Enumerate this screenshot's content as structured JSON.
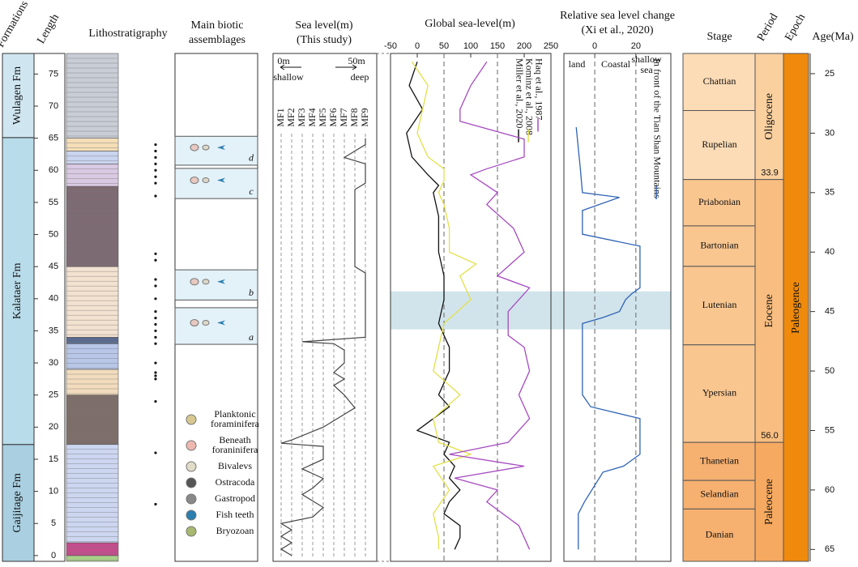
{
  "headers": {
    "formations": "Formations",
    "length": "Length",
    "lithostratigraphy": "Lithostratigraphy",
    "biotic_1": "Main biotic",
    "biotic_2": "assemblages",
    "sea_level_1": "Sea level(m)",
    "sea_level_2": "(This study)",
    "global": "Global sea-level(m)",
    "relative_1": "Relative sea level change",
    "relative_2": "(Xi et al., 2020)",
    "stage": "Stage",
    "period": "Period",
    "epoch": "Epoch",
    "age": "Age(Ma)"
  },
  "length_axis": {
    "lim": [
      -0.9,
      78.2
    ],
    "ticks": [
      0,
      5,
      10,
      15,
      20,
      25,
      30,
      35,
      40,
      45,
      50,
      55,
      60,
      65,
      70,
      75
    ]
  },
  "formations": [
    {
      "name": "Gaijitage Fm",
      "base": -0.9,
      "color": "#a9cfe0"
    },
    {
      "name": "Kalataer Fm",
      "base": 17.3,
      "color": "#b9dcea"
    },
    {
      "name": "Wulagen Fm",
      "base": 65.1,
      "color": "#cfe6f1"
    }
  ],
  "lithology": [
    {
      "bottom": -0.9,
      "top": 0,
      "color": "#a9cf8a"
    },
    {
      "bottom": 0,
      "top": 2,
      "color": "#c54c8c"
    },
    {
      "bottom": 2,
      "top": 17.3,
      "color": "#cdd6f0"
    },
    {
      "bottom": 17.3,
      "top": 25,
      "color": "#7d6e69"
    },
    {
      "bottom": 25,
      "top": 29,
      "color": "#f2dcbd"
    },
    {
      "bottom": 29,
      "top": 33,
      "color": "#b8c6e8"
    },
    {
      "bottom": 33,
      "top": 34,
      "color": "#5a6b8e"
    },
    {
      "bottom": 34,
      "top": 45,
      "color": "#f3e2d0"
    },
    {
      "bottom": 45,
      "top": 57.5,
      "color": "#7d6a72"
    },
    {
      "bottom": 57.5,
      "top": 61,
      "color": "#d9c9e2"
    },
    {
      "bottom": 61,
      "top": 63,
      "color": "#c9d4ef"
    },
    {
      "bottom": 63,
      "top": 65,
      "color": "#f5deb7"
    },
    {
      "bottom": 65,
      "top": 78.2,
      "color": "#c9cdd6"
    }
  ],
  "samples": [
    8,
    16,
    24,
    27.5,
    28,
    28.5,
    30,
    33,
    34,
    35,
    36,
    37,
    38,
    40,
    42,
    43,
    46,
    47,
    56,
    58,
    59,
    60,
    61,
    62,
    63,
    64
  ],
  "biotic": {
    "zones": [
      {
        "label": "a",
        "bottom": 32.9,
        "top": 38.6
      },
      {
        "label": "b",
        "bottom": 39.8,
        "top": 44.5
      },
      {
        "label": "c",
        "bottom": 55.6,
        "top": 60.3
      },
      {
        "label": "d",
        "bottom": 60.8,
        "top": 65.3
      }
    ],
    "legend": [
      [
        "Planktonic",
        "foraminifera"
      ],
      [
        "Beneath",
        "foraninifera"
      ],
      [
        "Bivalevs"
      ],
      [
        "Ostracoda"
      ],
      [
        "Gastropod"
      ],
      [
        "Fish teeth"
      ],
      [
        "Bryozoan"
      ]
    ]
  },
  "sea_level_study": {
    "left_label": "0m",
    "right_label": "50m",
    "shallow": "shallow",
    "deep": "deep",
    "facies": [
      "MF1",
      "MF2",
      "MF3",
      "MF4",
      "MF5",
      "MF6",
      "MF7",
      "MF8",
      "MF9"
    ],
    "lengths": [
      0,
      1,
      2,
      3,
      4,
      5,
      6,
      7.5,
      8.5,
      9.5,
      10.5,
      12,
      13.5,
      15,
      17,
      17.5,
      18,
      20,
      23,
      25,
      26.5,
      27.5,
      28.5,
      30,
      32,
      33,
      33.3,
      34,
      44,
      45,
      57,
      58,
      61,
      62,
      64,
      65
    ],
    "facies_index": [
      2,
      1,
      2,
      1,
      2,
      1,
      4,
      5,
      4,
      3,
      4,
      5,
      3,
      5,
      5,
      1,
      2,
      5,
      8,
      7,
      6,
      7,
      6,
      7,
      7,
      6,
      3,
      9,
      9,
      8,
      8,
      9,
      9,
      7,
      9,
      9
    ]
  },
  "age_axis": {
    "lim": [
      23.3,
      66.0
    ],
    "ticks": [
      25,
      30,
      35,
      40,
      45,
      50,
      55,
      60,
      65
    ]
  },
  "highlight": [
    43.3,
    46.5
  ],
  "global_sea_level": {
    "xlim": [
      -50,
      250
    ],
    "xticks": [
      -50,
      0,
      50,
      100,
      150,
      200,
      250
    ],
    "reference_lines": [
      50,
      150
    ],
    "series": [
      {
        "name": "Miller et al., 2020",
        "color": "#111111",
        "ages": [
          24,
          26,
          28,
          30,
          32,
          33.5,
          34.4,
          35,
          37,
          40,
          42,
          44,
          46,
          48,
          50,
          52,
          53,
          54,
          55,
          56,
          57,
          58,
          59,
          60,
          61,
          62,
          63,
          64,
          65
        ],
        "values": [
          0,
          -15,
          10,
          -20,
          -10,
          20,
          40,
          30,
          40,
          40,
          50,
          50,
          40,
          60,
          60,
          40,
          60,
          30,
          0,
          60,
          50,
          70,
          60,
          80,
          60,
          50,
          80,
          80,
          70
        ]
      },
      {
        "name": "Kominz et al., 2008",
        "color": "#e3e04a",
        "ages": [
          24,
          26,
          28,
          30,
          32,
          33,
          34,
          35,
          36,
          38,
          40,
          41,
          42,
          44,
          46,
          48,
          50,
          52,
          54,
          56,
          57,
          58,
          60,
          62,
          64,
          65
        ],
        "values": [
          -10,
          20,
          10,
          0,
          20,
          50,
          50,
          40,
          50,
          60,
          60,
          110,
          80,
          100,
          50,
          40,
          30,
          80,
          30,
          40,
          100,
          30,
          60,
          30,
          40,
          40
        ]
      },
      {
        "name": "Haq et al., 1987",
        "color": "#a64bc0",
        "ages": [
          24,
          26,
          28,
          29,
          30.5,
          32,
          33,
          33.5,
          35,
          36,
          38,
          40,
          42,
          43,
          45,
          47,
          48,
          50,
          52,
          54,
          56,
          57,
          58,
          59,
          60,
          61,
          63,
          65
        ],
        "values": [
          130,
          100,
          80,
          80,
          200,
          200,
          130,
          100,
          150,
          130,
          180,
          200,
          150,
          210,
          170,
          170,
          200,
          210,
          190,
          210,
          170,
          60,
          200,
          70,
          150,
          130,
          190,
          210
        ]
      }
    ]
  },
  "relative_sea_level": {
    "xlim": [
      -15,
      37
    ],
    "xticks": [
      0,
      20
    ],
    "land": "land",
    "coastal": "Coastal",
    "shallow_1": "shallow",
    "shallow_2": "sea",
    "series": [
      {
        "name": "In front of the Tian Shan Mountains",
        "color": "#2f63b5",
        "ages": [
          29.5,
          33,
          35,
          35.4,
          36.5,
          38.5,
          39.5,
          43,
          43.5,
          44,
          45,
          45.5,
          46,
          52,
          53,
          54,
          57,
          58,
          58.5,
          61,
          62,
          65
        ],
        "values": [
          -9,
          -7,
          -6,
          12,
          -6,
          -6,
          22,
          22,
          18,
          15,
          12,
          4,
          -6,
          -6,
          -2,
          22,
          22,
          14,
          4,
          -5,
          -8,
          -8
        ]
      }
    ]
  },
  "stages": [
    {
      "name": "Chattian",
      "base": 28.1,
      "color": "#fcdcb6"
    },
    {
      "name": "Rupelian",
      "base": 33.9,
      "color": "#fcdcb6"
    },
    {
      "name": "Priabonian",
      "base": 37.8,
      "color": "#f9c690"
    },
    {
      "name": "Bartonian",
      "base": 41.2,
      "color": "#f9c690"
    },
    {
      "name": "Lutenian",
      "base": 47.8,
      "color": "#f9c690"
    },
    {
      "name": "Ypersian",
      "base": 56.0,
      "color": "#f9c690"
    },
    {
      "name": "Thanetian",
      "base": 59.2,
      "color": "#f6b070"
    },
    {
      "name": "Selandian",
      "base": 61.6,
      "color": "#f6b070"
    },
    {
      "name": "Danian",
      "base": 66.0,
      "color": "#f6b070"
    }
  ],
  "periods": [
    {
      "name": "Oligocene",
      "base": {
        "value": 33.9,
        "label": "33.9"
      },
      "color": "#fbd09f"
    },
    {
      "name": "Eocene",
      "base": {
        "value": 56.0,
        "label": "56.0"
      },
      "color": "#f8bd80"
    },
    {
      "name": "Paleocene",
      "base": 66.0,
      "color": "#f6a960"
    }
  ],
  "epoch": {
    "name": "Paleogence",
    "color": "#f08a0c"
  }
}
